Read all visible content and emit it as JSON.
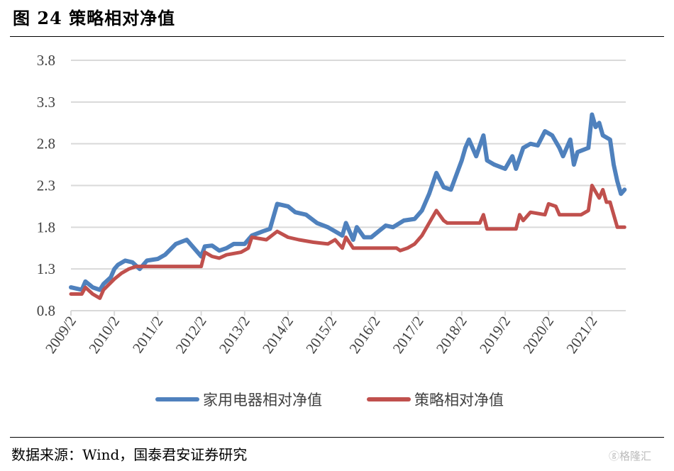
{
  "title": "图 24  策略相对净值",
  "source": "数据来源：Wind，国泰君安证券研究",
  "watermark": "格隆汇",
  "chart_data": {
    "type": "line",
    "title": "",
    "xlabel": "",
    "ylabel": "",
    "ylim": [
      0.8,
      3.8
    ],
    "yticks": [
      "0.8",
      "1.3",
      "1.8",
      "2.3",
      "2.8",
      "3.3",
      "3.8"
    ],
    "xticks": [
      "2009/2",
      "2010/2",
      "2011/2",
      "2012/2",
      "2013/2",
      "2014/2",
      "2015/2",
      "2016/2",
      "2017/2",
      "2018/2",
      "2019/2",
      "2020/2",
      "2021/2"
    ],
    "xrange": [
      "2009-02",
      "2021-11"
    ],
    "grid": "horizontal",
    "legend": "bottom",
    "series": [
      {
        "name": "家用电器相对净值",
        "color": "#4F81BD",
        "points": [
          [
            "2009-02",
            1.08
          ],
          [
            "2009-05",
            1.05
          ],
          [
            "2009-06",
            1.15
          ],
          [
            "2009-08",
            1.08
          ],
          [
            "2009-10",
            1.05
          ],
          [
            "2009-11",
            1.12
          ],
          [
            "2010-01",
            1.2
          ],
          [
            "2010-02",
            1.3
          ],
          [
            "2010-03",
            1.35
          ],
          [
            "2010-05",
            1.4
          ],
          [
            "2010-07",
            1.38
          ],
          [
            "2010-09",
            1.3
          ],
          [
            "2010-11",
            1.4
          ],
          [
            "2011-02",
            1.42
          ],
          [
            "2011-04",
            1.47
          ],
          [
            "2011-07",
            1.6
          ],
          [
            "2011-10",
            1.65
          ],
          [
            "2012-01",
            1.5
          ],
          [
            "2012-02",
            1.45
          ],
          [
            "2012-03",
            1.57
          ],
          [
            "2012-05",
            1.58
          ],
          [
            "2012-07",
            1.52
          ],
          [
            "2012-09",
            1.55
          ],
          [
            "2012-11",
            1.6
          ],
          [
            "2013-02",
            1.6
          ],
          [
            "2013-04",
            1.7
          ],
          [
            "2013-07",
            1.75
          ],
          [
            "2013-09",
            1.78
          ],
          [
            "2013-11",
            2.08
          ],
          [
            "2014-02",
            2.05
          ],
          [
            "2014-04",
            1.98
          ],
          [
            "2014-07",
            1.95
          ],
          [
            "2014-10",
            1.85
          ],
          [
            "2015-01",
            1.8
          ],
          [
            "2015-03",
            1.75
          ],
          [
            "2015-05",
            1.7
          ],
          [
            "2015-06",
            1.85
          ],
          [
            "2015-08",
            1.65
          ],
          [
            "2015-09",
            1.8
          ],
          [
            "2015-11",
            1.68
          ],
          [
            "2016-01",
            1.68
          ],
          [
            "2016-03",
            1.75
          ],
          [
            "2016-05",
            1.82
          ],
          [
            "2016-07",
            1.8
          ],
          [
            "2016-10",
            1.88
          ],
          [
            "2017-01",
            1.9
          ],
          [
            "2017-03",
            2.0
          ],
          [
            "2017-05",
            2.2
          ],
          [
            "2017-07",
            2.45
          ],
          [
            "2017-09",
            2.28
          ],
          [
            "2017-11",
            2.25
          ],
          [
            "2018-02",
            2.6
          ],
          [
            "2018-03",
            2.75
          ],
          [
            "2018-04",
            2.85
          ],
          [
            "2018-06",
            2.65
          ],
          [
            "2018-08",
            2.9
          ],
          [
            "2018-09",
            2.6
          ],
          [
            "2018-11",
            2.55
          ],
          [
            "2019-02",
            2.5
          ],
          [
            "2019-04",
            2.65
          ],
          [
            "2019-05",
            2.5
          ],
          [
            "2019-07",
            2.75
          ],
          [
            "2019-09",
            2.8
          ],
          [
            "2019-11",
            2.78
          ],
          [
            "2020-01",
            2.95
          ],
          [
            "2020-03",
            2.9
          ],
          [
            "2020-05",
            2.75
          ],
          [
            "2020-06",
            2.65
          ],
          [
            "2020-08",
            2.85
          ],
          [
            "2020-09",
            2.55
          ],
          [
            "2020-10",
            2.7
          ],
          [
            "2021-01",
            2.75
          ],
          [
            "2021-02",
            3.15
          ],
          [
            "2021-03",
            3.0
          ],
          [
            "2021-04",
            3.05
          ],
          [
            "2021-05",
            2.9
          ],
          [
            "2021-07",
            2.85
          ],
          [
            "2021-08",
            2.55
          ],
          [
            "2021-09",
            2.35
          ],
          [
            "2021-10",
            2.2
          ],
          [
            "2021-11",
            2.25
          ]
        ]
      },
      {
        "name": "策略相对净值",
        "color": "#C0504D",
        "points": [
          [
            "2009-02",
            1.0
          ],
          [
            "2009-05",
            1.0
          ],
          [
            "2009-06",
            1.08
          ],
          [
            "2009-08",
            1.0
          ],
          [
            "2009-10",
            0.95
          ],
          [
            "2009-11",
            1.05
          ],
          [
            "2010-02",
            1.18
          ],
          [
            "2010-04",
            1.25
          ],
          [
            "2010-06",
            1.3
          ],
          [
            "2010-08",
            1.33
          ],
          [
            "2012-02",
            1.33
          ],
          [
            "2012-03",
            1.5
          ],
          [
            "2012-05",
            1.45
          ],
          [
            "2012-07",
            1.43
          ],
          [
            "2012-09",
            1.47
          ],
          [
            "2013-01",
            1.5
          ],
          [
            "2013-03",
            1.55
          ],
          [
            "2013-04",
            1.68
          ],
          [
            "2013-08",
            1.65
          ],
          [
            "2013-11",
            1.75
          ],
          [
            "2014-02",
            1.68
          ],
          [
            "2014-05",
            1.65
          ],
          [
            "2014-09",
            1.62
          ],
          [
            "2015-01",
            1.6
          ],
          [
            "2015-03",
            1.65
          ],
          [
            "2015-05",
            1.55
          ],
          [
            "2015-06",
            1.68
          ],
          [
            "2015-08",
            1.55
          ],
          [
            "2016-08",
            1.55
          ],
          [
            "2016-09",
            1.52
          ],
          [
            "2016-11",
            1.55
          ],
          [
            "2017-01",
            1.6
          ],
          [
            "2017-03",
            1.7
          ],
          [
            "2017-05",
            1.85
          ],
          [
            "2017-07",
            2.0
          ],
          [
            "2017-09",
            1.88
          ],
          [
            "2017-10",
            1.85
          ],
          [
            "2018-07",
            1.85
          ],
          [
            "2018-08",
            1.95
          ],
          [
            "2018-09",
            1.78
          ],
          [
            "2019-05",
            1.78
          ],
          [
            "2019-06",
            1.95
          ],
          [
            "2019-07",
            1.88
          ],
          [
            "2019-09",
            1.98
          ],
          [
            "2020-01",
            1.95
          ],
          [
            "2020-02",
            2.08
          ],
          [
            "2020-04",
            2.05
          ],
          [
            "2020-05",
            1.95
          ],
          [
            "2020-11",
            1.95
          ],
          [
            "2021-01",
            2.0
          ],
          [
            "2021-02",
            2.3
          ],
          [
            "2021-04",
            2.15
          ],
          [
            "2021-05",
            2.25
          ],
          [
            "2021-06",
            2.1
          ],
          [
            "2021-07",
            2.1
          ],
          [
            "2021-08",
            1.95
          ],
          [
            "2021-09",
            1.8
          ],
          [
            "2021-11",
            1.8
          ]
        ]
      }
    ]
  }
}
